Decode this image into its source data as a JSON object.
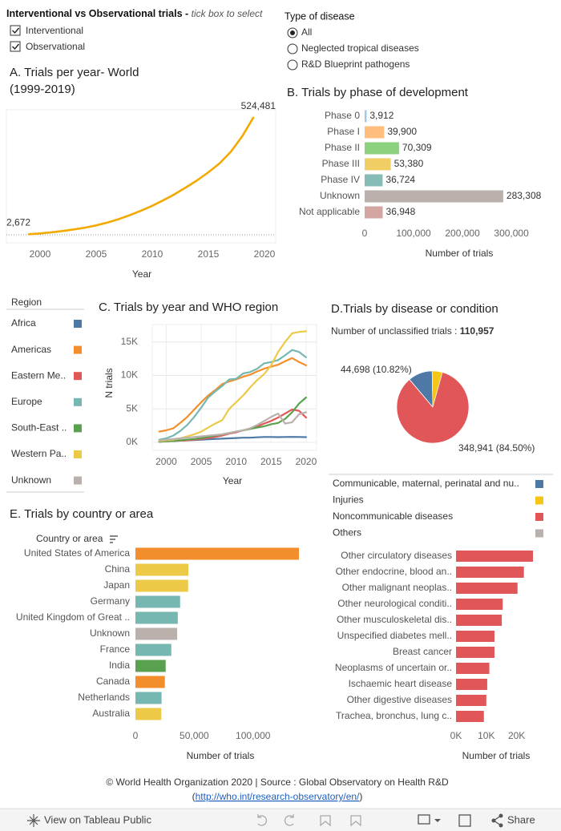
{
  "filters": {
    "trial_type": {
      "title": "Interventional vs Observational trials - ",
      "hint": "tick box to select",
      "options": [
        "Interventional",
        "Observational"
      ]
    },
    "disease_type": {
      "title": "Type of disease",
      "options": [
        "All",
        "Neglected tropical diseases",
        "R&D Blueprint pathogens"
      ]
    }
  },
  "chart_data": [
    {
      "type": "line",
      "title": "A. Trials per year- World (1999-2019)",
      "x": [
        1999,
        2000,
        2001,
        2002,
        2003,
        2004,
        2005,
        2006,
        2007,
        2008,
        2009,
        2010,
        2011,
        2012,
        2013,
        2014,
        2015,
        2016,
        2017,
        2018,
        2019
      ],
      "values": [
        2672,
        6000,
        11000,
        17000,
        24000,
        32000,
        42000,
        55000,
        70000,
        88000,
        108000,
        130000,
        155000,
        182000,
        212000,
        244000,
        280000,
        320000,
        372000,
        440000,
        524481
      ],
      "value_labels": [
        "2,672",
        null,
        null,
        null,
        null,
        null,
        null,
        null,
        null,
        null,
        null,
        null,
        null,
        null,
        null,
        null,
        null,
        null,
        null,
        null,
        "524,481"
      ],
      "color": "#f2a900",
      "xlim": [
        1997,
        2021
      ],
      "xticks": [
        2000,
        2005,
        2010,
        2015,
        2020
      ],
      "ylim": [
        0,
        560000
      ],
      "xlabel": "Year",
      "grid": false
    },
    {
      "type": "bar",
      "orientation": "horizontal",
      "title": "B. Trials by phase of development",
      "categories": [
        "Phase 0",
        "Phase I",
        "Phase II",
        "Phase III",
        "Phase IV",
        "Unknown",
        "Not applicable"
      ],
      "values": [
        3912,
        39900,
        70309,
        53380,
        36724,
        283308,
        36948
      ],
      "value_labels": [
        "3,912",
        "39,900",
        "70,309",
        "53,380",
        "36,724",
        "283,308",
        "36,948"
      ],
      "colors": [
        "#9ecae9",
        "#ffbe7d",
        "#8cd17d",
        "#f1ce63",
        "#86bcb6",
        "#bab0ac",
        "#d4a6a1"
      ],
      "xlim": [
        0,
        385000
      ],
      "xticks": [
        0,
        {
          "value": 100000,
          "label": "100,000"
        },
        {
          "value": 200000,
          "label": "200,000"
        },
        {
          "value": 300000,
          "label": "300,000"
        }
      ],
      "xlabel": "Number of trials"
    },
    {
      "type": "line",
      "title": "C. Trials by year and WHO region",
      "x": [
        1999,
        2000,
        2001,
        2002,
        2003,
        2004,
        2005,
        2006,
        2007,
        2008,
        2009,
        2010,
        2011,
        2012,
        2013,
        2014,
        2015,
        2016,
        2017,
        2018,
        2019,
        2020
      ],
      "series": [
        {
          "name": "Africa",
          "color": "#4e79a7",
          "values": [
            100,
            150,
            200,
            250,
            300,
            350,
            400,
            450,
            500,
            550,
            600,
            650,
            700,
            700,
            750,
            800,
            800,
            780,
            800,
            820,
            800,
            780
          ]
        },
        {
          "name": "Americas",
          "color": "#f28e2b",
          "values": [
            1600,
            1800,
            2100,
            2900,
            3800,
            4900,
            6000,
            7000,
            7800,
            8700,
            9100,
            9400,
            9800,
            10100,
            10600,
            11000,
            11300,
            11600,
            12100,
            12600,
            12000,
            11500
          ]
        },
        {
          "name": "Eastern Me..",
          "color": "#e15759",
          "values": [
            100,
            150,
            200,
            250,
            300,
            400,
            500,
            650,
            800,
            1000,
            1300,
            1500,
            1800,
            2100,
            2400,
            2800,
            3200,
            3700,
            4300,
            4900,
            4700,
            3700
          ]
        },
        {
          "name": "Europe",
          "color": "#76b7b2",
          "values": [
            400,
            600,
            1000,
            1700,
            2600,
            3800,
            5200,
            6700,
            7600,
            8400,
            9400,
            9500,
            10300,
            10500,
            11000,
            11800,
            12000,
            12300,
            13000,
            13800,
            13500,
            12700
          ]
        },
        {
          "name": "South-East ..",
          "color": "#59a14f",
          "values": [
            100,
            150,
            200,
            300,
            400,
            500,
            650,
            800,
            1000,
            1200,
            1400,
            1600,
            1800,
            2000,
            2200,
            2400,
            2700,
            2900,
            3500,
            4500,
            5800,
            6700
          ]
        },
        {
          "name": "Western Pa..",
          "color": "#edc948",
          "values": [
            200,
            300,
            400,
            600,
            900,
            1200,
            1600,
            2200,
            2800,
            3300,
            5000,
            6000,
            7000,
            8200,
            9300,
            10200,
            11500,
            13500,
            15000,
            16300,
            16500,
            16600
          ]
        },
        {
          "name": "Unknown",
          "color": "#bab0ac",
          "values": [
            300,
            400,
            500,
            600,
            700,
            800,
            900,
            1000,
            1100,
            1200,
            1400,
            1600,
            1800,
            2100,
            2600,
            3200,
            3800,
            4300,
            2800,
            3000,
            4200,
            4500
          ]
        }
      ],
      "legend_title": "Region",
      "xlim": [
        1998,
        2021.5
      ],
      "xticks": [
        2000,
        2005,
        2010,
        2015,
        2020
      ],
      "ylim": [
        0,
        17600
      ],
      "yticks": [
        {
          "value": 0,
          "label": "0K"
        },
        {
          "value": 5000,
          "label": "5K"
        },
        {
          "value": 10000,
          "label": "10K"
        },
        {
          "value": 15000,
          "label": "15K"
        }
      ],
      "xlabel": "Year",
      "ylabel": "N trials",
      "grid": true
    },
    {
      "type": "pie",
      "title": "D.Trials by disease or condition",
      "subtitle": "Number of unclassified trials : ",
      "unclassified_trials": "110,957",
      "categories": [
        "Communicable, maternal, perinatal and nu..",
        "Injuries",
        "Noncommunicable diseases",
        "Others"
      ],
      "values": [
        44698,
        19000,
        348941,
        308
      ],
      "value_labels": [
        "44,698  (10.82%)",
        null,
        "348,941  (84.50%)",
        null
      ],
      "colors": [
        "#4e79a7",
        "#f5c518",
        "#e15759",
        "#bab0ac"
      ]
    },
    {
      "type": "bar",
      "orientation": "horizontal",
      "title": "E. Trials by country or area",
      "column_header": "Country or area",
      "categories": [
        "United States of America",
        "China",
        "Japan",
        "Germany",
        "United Kingdom of Great ..",
        "Unknown",
        "France",
        "India",
        "Canada",
        "Netherlands",
        "Australia"
      ],
      "values": [
        139000,
        45000,
        44800,
        38000,
        36000,
        35500,
        30500,
        25700,
        25000,
        22200,
        22000
      ],
      "colors": [
        "#f28e2b",
        "#edc948",
        "#edc948",
        "#76b7b2",
        "#76b7b2",
        "#bab0ac",
        "#76b7b2",
        "#59a14f",
        "#f28e2b",
        "#76b7b2",
        "#edc948"
      ],
      "xlim": [
        0,
        154000
      ],
      "xticks": [
        0,
        {
          "value": 50000,
          "label": "50,000"
        },
        {
          "value": 100000,
          "label": "100,000"
        }
      ],
      "xlabel": "Number of trials"
    },
    {
      "type": "bar",
      "orientation": "horizontal",
      "categories": [
        "Other circulatory diseases",
        "Other endocrine, blood an..",
        "Other malignant neoplas..",
        "Other neurological conditi..",
        "Other musculoskeletal dis..",
        "Unspecified diabetes mell..",
        "Breast cancer",
        "Neoplasms of uncertain or..",
        "Ischaemic heart disease",
        "Other digestive diseases",
        "Trachea, bronchus, lung c.."
      ],
      "values": [
        25400,
        22400,
        20300,
        15400,
        15100,
        12700,
        12700,
        11000,
        10300,
        10000,
        9200
      ],
      "color": "#e15759",
      "xlim": [
        0,
        32000
      ],
      "xticks": [
        {
          "value": 0,
          "label": "0K"
        },
        {
          "value": 10000,
          "label": "10K"
        },
        {
          "value": 20000,
          "label": "20K"
        }
      ],
      "xlabel": "Number of trials"
    }
  ],
  "footer": {
    "credit": "© World Health Organization 2020 | Source : Global Observatory on Health R&D",
    "link_prefix": "(",
    "link": "http://who.int/research-observatory/en/",
    "link_suffix": ")"
  },
  "toolbar": {
    "view": "View on Tableau Public",
    "share": "Share"
  }
}
